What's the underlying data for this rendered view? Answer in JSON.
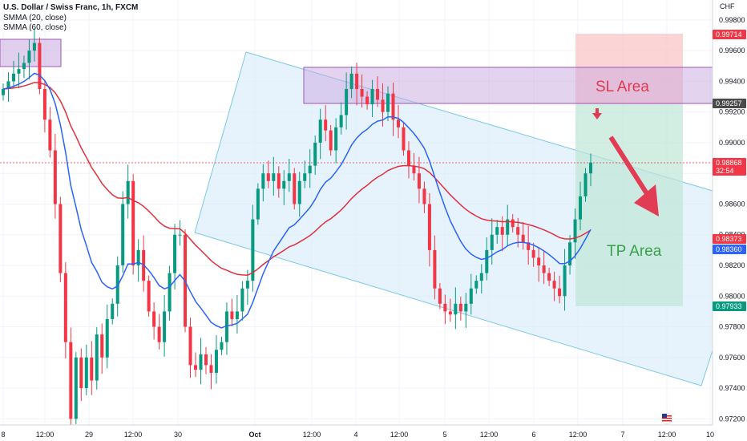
{
  "header": {
    "title": "U.S. Dollar / Swiss Franc, 1h, FXCM",
    "indicator_1": "SMMA (20, close)",
    "indicator_2": "SMMA (60, close)"
  },
  "currency": "CHF",
  "y_ticks": [
    "0.99800",
    "0.99600",
    "0.99400",
    "0.99200",
    "0.99000",
    "0.98800",
    "0.98600",
    "0.98400",
    "0.98200",
    "0.98000",
    "0.97800",
    "0.97600",
    "0.97400",
    "0.97200"
  ],
  "x_ticks": [
    "8",
    "12:00",
    "29",
    "12:00",
    "30",
    "Oct",
    "12:00",
    "4",
    "12:00",
    "5",
    "12:00",
    "6",
    "12:00",
    "7",
    "12:00",
    "10"
  ],
  "price_tags": [
    {
      "label": "0.99714",
      "value": 0.99714,
      "bg": "#f23645"
    },
    {
      "label": "0.99257",
      "value": 0.99257,
      "bg": "#4a4a4a"
    },
    {
      "label": "0.98868",
      "value": 0.98868,
      "bg": "#f23645",
      "sub": "32:54"
    },
    {
      "label": "0.98373",
      "value": 0.98373,
      "bg": "#f23645"
    },
    {
      "label": "0.98360",
      "value": 0.9836,
      "bg": "#2962ff"
    },
    {
      "label": "0.97933",
      "value": 0.97933,
      "bg": "#089981"
    }
  ],
  "annotations": {
    "sl_label": "SL Area",
    "tp_label": "TP Area"
  },
  "chart_data": {
    "type": "candlestick",
    "symbol": "USDCHF",
    "timeframe": "1h",
    "ylim": [
      0.9716,
      0.9993
    ],
    "current_price": 0.98868,
    "stop_loss": 0.99714,
    "entry": 0.99257,
    "take_profit": 0.97933,
    "sma20_last": 0.9836,
    "sma60_last": 0.98373,
    "colors": {
      "up": "#089981",
      "down": "#f23645",
      "sma20": "#2962ff",
      "sma60": "#e0303b"
    },
    "closes": [
      0.9935,
      0.994,
      0.9945,
      0.9948,
      0.9952,
      0.996,
      0.9965,
      0.9935,
      0.9915,
      0.9895,
      0.986,
      0.9815,
      0.977,
      0.972,
      0.976,
      0.974,
      0.976,
      0.9745,
      0.9775,
      0.976,
      0.9785,
      0.9795,
      0.982,
      0.986,
      0.9875,
      0.982,
      0.983,
      0.981,
      0.979,
      0.978,
      0.977,
      0.979,
      0.9815,
      0.984,
      0.984,
      0.978,
      0.9755,
      0.9752,
      0.9762,
      0.9755,
      0.975,
      0.9765,
      0.977,
      0.979,
      0.9785,
      0.979,
      0.9805,
      0.981,
      0.985,
      0.987,
      0.988,
      0.9875,
      0.988,
      0.987,
      0.9875,
      0.988,
      0.986,
      0.9875,
      0.988,
      0.9885,
      0.99,
      0.9915,
      0.9908,
      0.9895,
      0.991,
      0.9918,
      0.9935,
      0.9945,
      0.9935,
      0.993,
      0.9925,
      0.9935,
      0.9928,
      0.992,
      0.9932,
      0.9915,
      0.991,
      0.9895,
      0.9885,
      0.988,
      0.987,
      0.986,
      0.983,
      0.9805,
      0.9795,
      0.979,
      0.9788,
      0.9795,
      0.979,
      0.9795,
      0.9805,
      0.981,
      0.9815,
      0.983,
      0.984,
      0.9845,
      0.984,
      0.985,
      0.9845,
      0.984,
      0.9835,
      0.983,
      0.9825,
      0.982,
      0.9815,
      0.981,
      0.9805,
      0.98,
      0.982,
      0.9835,
      0.985,
      0.9865,
      0.988,
      0.9887
    ]
  }
}
